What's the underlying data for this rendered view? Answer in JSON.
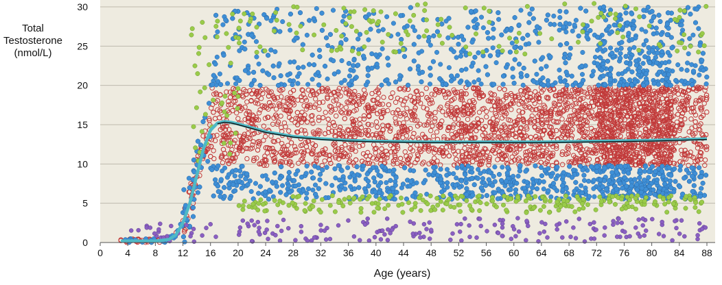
{
  "chart_data": {
    "type": "scatter",
    "title": "",
    "ylabel_lines": [
      "Total",
      "Testosterone",
      "(nmol/L)"
    ],
    "xlabel": "Age (years)",
    "xlim": [
      0,
      88
    ],
    "ylim": [
      0,
      30
    ],
    "x_ticks": [
      "0",
      "4",
      "8",
      "12",
      "16",
      "20",
      "24",
      "28",
      "32",
      "36",
      "40",
      "44",
      "48",
      "52",
      "56",
      "60",
      "64",
      "68",
      "72",
      "76",
      "80",
      "84",
      "88"
    ],
    "y_ticks": [
      "0",
      "5",
      "10",
      "15",
      "20",
      "25",
      "30"
    ],
    "grid": "horizontal",
    "legend": "none",
    "colors": {
      "plot_background": "#eeebe0",
      "grid": "#bdb9ad",
      "blue_points": "#3f8fd6",
      "green_points": "#9acb4a",
      "purple_points": "#8a5fc2",
      "red_points": "#c23b3b",
      "fit_line": "#4fb9c6",
      "median_line": "#111111"
    },
    "series": [
      {
        "role": "centile band 20–80 (open red markers)",
        "x_range": [
          4,
          88
        ],
        "y_range": [
          9.5,
          20
        ]
      },
      {
        "role": "centile band (blue markers)",
        "x_range": [
          4,
          88
        ],
        "y_range": [
          5,
          30
        ]
      },
      {
        "role": "outer centiles (green markers)",
        "x_range": [
          12,
          88
        ],
        "y_range": [
          3.5,
          30
        ]
      },
      {
        "role": "outer centiles (purple markers)",
        "x_range": [
          3,
          88
        ],
        "y_range": [
          0,
          3
        ]
      },
      {
        "role": "fitted mean curve",
        "x": [
          3,
          4,
          5,
          6,
          7,
          8,
          9,
          10,
          11,
          12,
          13,
          14,
          15,
          16,
          17,
          18,
          19,
          20,
          22,
          24,
          28,
          32,
          36,
          40,
          48,
          56,
          64,
          72,
          80,
          88
        ],
        "y": [
          0.2,
          0.2,
          0.2,
          0.2,
          0.2,
          0.2,
          0.3,
          0.4,
          1.0,
          2.5,
          5.0,
          8.5,
          12.0,
          14.3,
          15.2,
          15.4,
          15.3,
          15.1,
          14.6,
          14.1,
          13.5,
          13.2,
          13.0,
          12.9,
          12.8,
          12.8,
          12.8,
          12.9,
          13.0,
          13.2
        ]
      }
    ]
  }
}
